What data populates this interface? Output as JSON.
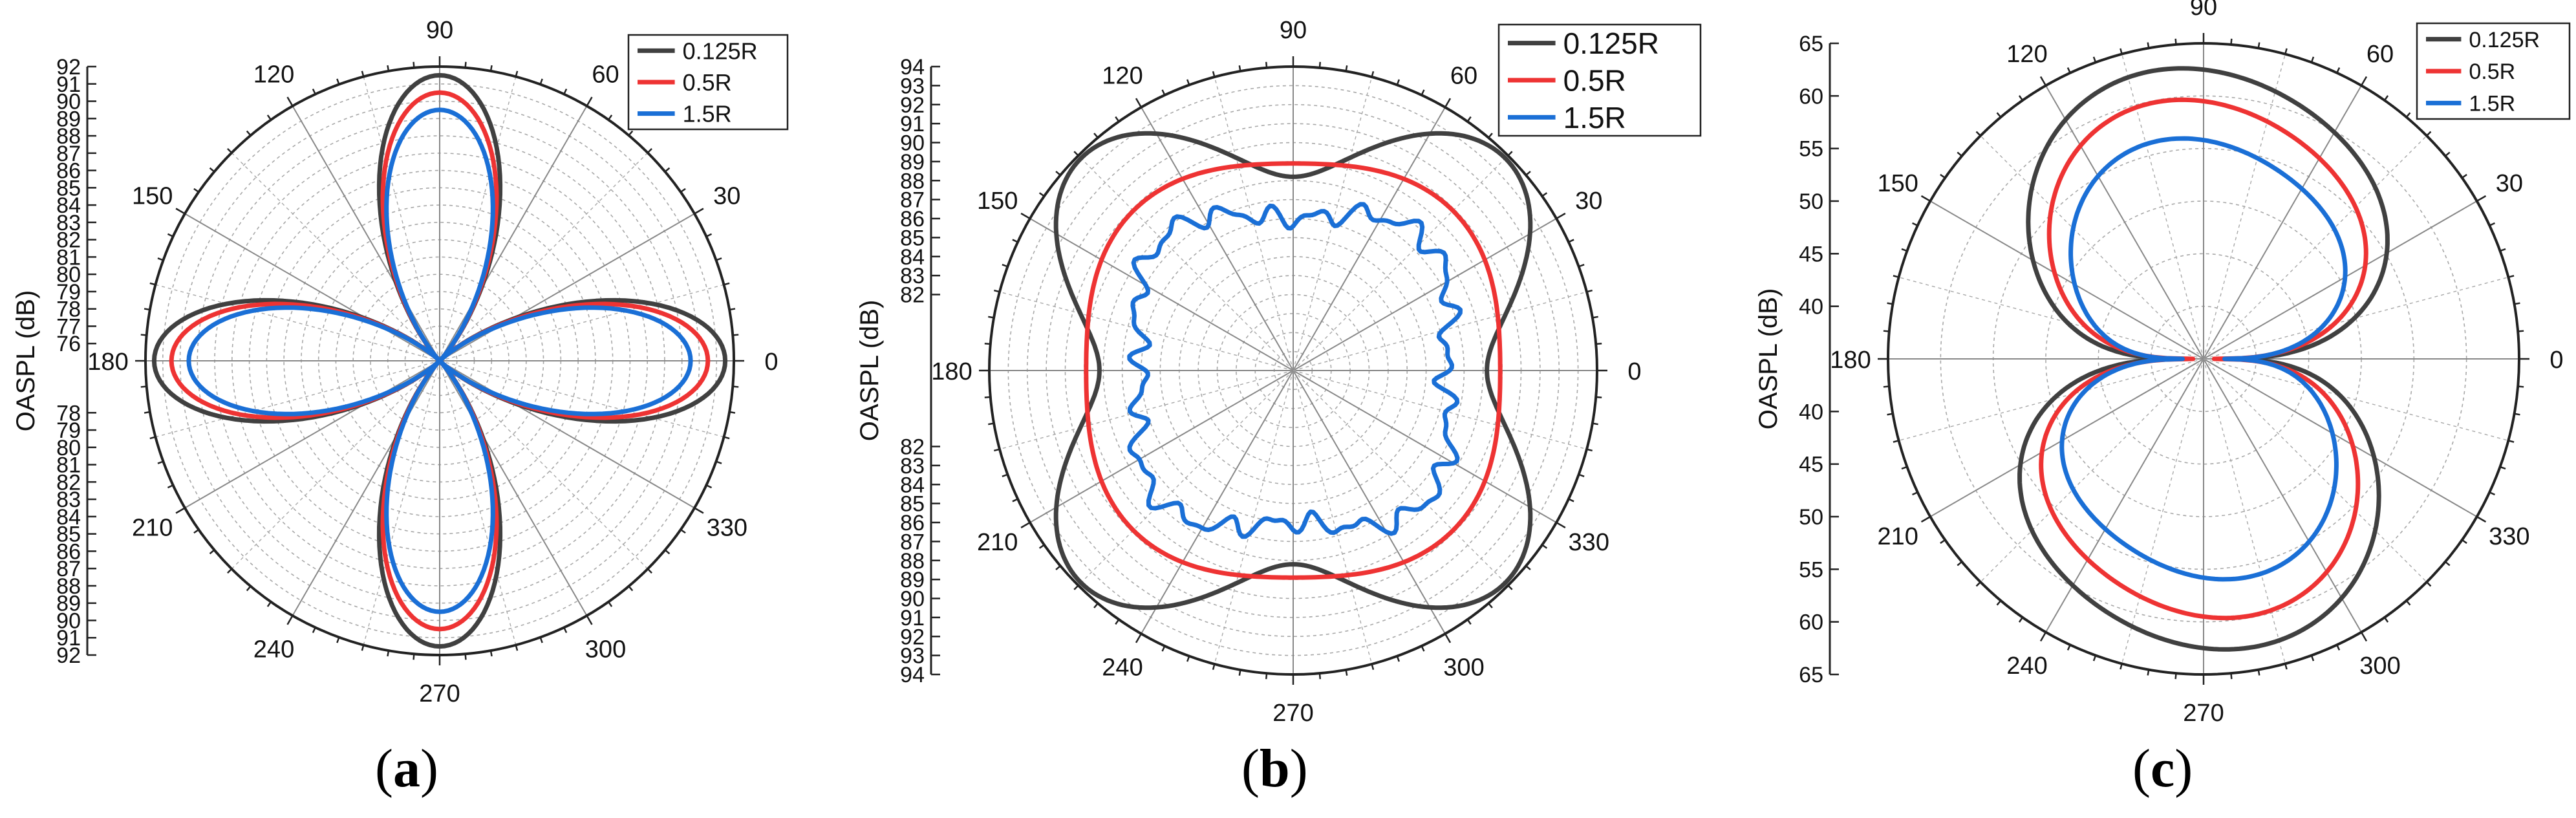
{
  "colors": {
    "s0125": "#404040",
    "s05": "#ee3333",
    "s15": "#1a6fd6",
    "grid": "#a8a8a8"
  },
  "angle_labels": [
    "0",
    "30",
    "60",
    "90",
    "120",
    "150",
    "180",
    "210",
    "240",
    "270",
    "300",
    "330"
  ],
  "captions": [
    {
      "open": "(",
      "letter": "a",
      "close": ")"
    },
    {
      "open": "(",
      "letter": "b",
      "close": ")"
    },
    {
      "open": "(",
      "letter": "c",
      "close": ")"
    }
  ],
  "chart_data": [
    {
      "type": "polar-line",
      "panel": "a",
      "ylabel": "OASPL (dB)",
      "r_range": [
        75,
        92
      ],
      "radial_ticks_upper": [
        "92",
        "91",
        "90",
        "89",
        "88",
        "87",
        "86",
        "85",
        "84",
        "83",
        "82",
        "81",
        "80",
        "79",
        "78",
        "77",
        "76"
      ],
      "radial_ticks_lower": [
        "78",
        "79",
        "80",
        "81",
        "82",
        "83",
        "84",
        "85",
        "86",
        "87",
        "88",
        "89",
        "90",
        "91",
        "92"
      ],
      "legend": [
        "0.125R",
        "0.5R",
        "1.5R"
      ],
      "series": [
        {
          "name": "0.125R",
          "color_key": "s0125",
          "shape": "rose",
          "base": 75,
          "peak": 91.5,
          "petals": 4,
          "power": 1.8
        },
        {
          "name": "0.5R",
          "color_key": "s05",
          "shape": "rose",
          "base": 75,
          "peak": 90.5,
          "petals": 4,
          "power": 1.8
        },
        {
          "name": "1.5R",
          "color_key": "s15",
          "shape": "rose",
          "base": 75,
          "peak": 89.5,
          "petals": 4,
          "power": 1.8
        }
      ]
    },
    {
      "type": "polar-line",
      "panel": "b",
      "ylabel": "OASPL (dB)",
      "r_range": [
        78,
        94
      ],
      "radial_ticks_upper": [
        "94",
        "93",
        "92",
        "91",
        "90",
        "89",
        "88",
        "87",
        "86",
        "85",
        "84",
        "83",
        "82"
      ],
      "radial_ticks_lower": [
        "82",
        "83",
        "84",
        "85",
        "86",
        "87",
        "88",
        "89",
        "90",
        "91",
        "92",
        "93",
        "94"
      ],
      "legend": [
        "0.125R",
        "0.5R",
        "1.5R"
      ],
      "series": [
        {
          "name": "0.125R",
          "color_key": "s0125",
          "shape": "cos4",
          "mean": 91.0,
          "amp": 2.8,
          "noise": 0.0
        },
        {
          "name": "0.5R",
          "color_key": "s05",
          "shape": "cos4",
          "mean": 89.4,
          "amp": 0.5,
          "noise": 0.0
        },
        {
          "name": "1.5R",
          "color_key": "s15",
          "shape": "cos4",
          "mean": 86.9,
          "amp": 0.9,
          "noise": 0.4
        }
      ]
    },
    {
      "type": "polar-line",
      "panel": "c",
      "ylabel": "OASPL (dB)",
      "r_range": [
        35,
        65
      ],
      "radial_ticks_upper": [
        "65",
        "60",
        "55",
        "50",
        "45",
        "40"
      ],
      "radial_ticks_lower": [
        "40",
        "45",
        "50",
        "55",
        "60",
        "65"
      ],
      "legend": [
        "0.125R",
        "0.5R",
        "1.5R"
      ],
      "series": [
        {
          "name": "0.125R",
          "color_key": "s0125",
          "shape": "dipole",
          "side": 37,
          "peak": 62.5
        },
        {
          "name": "0.5R",
          "color_key": "s05",
          "shape": "dipole",
          "side": 36,
          "peak": 59.5
        },
        {
          "name": "1.5R",
          "color_key": "s15",
          "shape": "dipole",
          "side": 37,
          "peak": 55.8
        }
      ]
    }
  ]
}
